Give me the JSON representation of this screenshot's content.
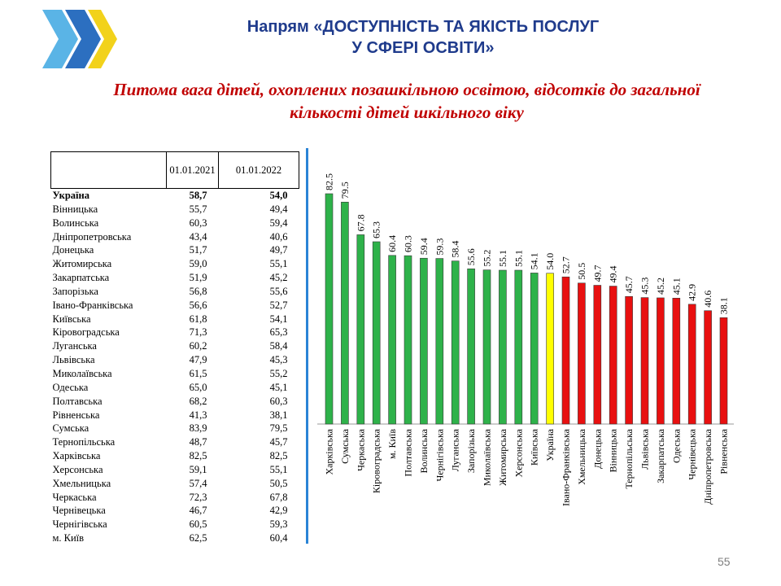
{
  "header": {
    "title_line1": "Напрям «ДОСТУПНІСТЬ ТА ЯКІСТЬ ПОСЛУГ",
    "title_line2": "У СФЕРІ ОСВІТИ»",
    "subtitle_line1": "Питома вага дітей, охоплених позашкільною освітою, відсотків до загальної",
    "subtitle_line2": "кількості дітей шкільного віку"
  },
  "colors": {
    "title": "#1f3b8c",
    "subtitle": "#c00000",
    "bar_above": "#2eb24a",
    "bar_ukraine": "#ffff00",
    "bar_below": "#e81010",
    "divider": "#2a84d6"
  },
  "table": {
    "columns": [
      "",
      "01.01.2021",
      "01.01.2022"
    ],
    "rows": [
      {
        "name": "Україна",
        "v2021": "58,7",
        "v2022": "54,0",
        "bold": true
      },
      {
        "name": "Вінницька",
        "v2021": "55,7",
        "v2022": "49,4"
      },
      {
        "name": "Волинська",
        "v2021": "60,3",
        "v2022": "59,4"
      },
      {
        "name": "Дніпропетровська",
        "v2021": "43,4",
        "v2022": "40,6"
      },
      {
        "name": "Донецька",
        "v2021": "51,7",
        "v2022": "49,7"
      },
      {
        "name": "Житомирська",
        "v2021": "59,0",
        "v2022": "55,1"
      },
      {
        "name": "Закарпатська",
        "v2021": "51,9",
        "v2022": "45,2"
      },
      {
        "name": "Запорізька",
        "v2021": "56,8",
        "v2022": "55,6"
      },
      {
        "name": "Івано-Франківська",
        "v2021": "56,6",
        "v2022": "52,7"
      },
      {
        "name": "Київська",
        "v2021": "61,8",
        "v2022": "54,1"
      },
      {
        "name": "Кіровоградська",
        "v2021": "71,3",
        "v2022": "65,3"
      },
      {
        "name": "Луганська",
        "v2021": "60,2",
        "v2022": "58,4"
      },
      {
        "name": "Львівська",
        "v2021": "47,9",
        "v2022": "45,3"
      },
      {
        "name": "Миколаївська",
        "v2021": "61,5",
        "v2022": "55,2"
      },
      {
        "name": "Одеська",
        "v2021": "65,0",
        "v2022": "45,1"
      },
      {
        "name": "Полтавська",
        "v2021": "68,2",
        "v2022": "60,3"
      },
      {
        "name": "Рівненська",
        "v2021": "41,3",
        "v2022": "38,1"
      },
      {
        "name": "Сумська",
        "v2021": "83,9",
        "v2022": "79,5"
      },
      {
        "name": "Тернопільська",
        "v2021": "48,7",
        "v2022": "45,7"
      },
      {
        "name": "Харківська",
        "v2021": "82,5",
        "v2022": "82,5"
      },
      {
        "name": "Херсонська",
        "v2021": "59,1",
        "v2022": "55,1"
      },
      {
        "name": "Хмельницька",
        "v2021": "57,4",
        "v2022": "50,5"
      },
      {
        "name": "Черкаська",
        "v2021": "72,3",
        "v2022": "67,8"
      },
      {
        "name": "Чернівецька",
        "v2021": "46,7",
        "v2022": "42,9"
      },
      {
        "name": "Чернігівська",
        "v2021": "60,5",
        "v2022": "59,3"
      },
      {
        "name": "м. Київ",
        "v2021": "62,5",
        "v2022": "60,4"
      }
    ]
  },
  "chart_data": {
    "type": "bar",
    "title": "",
    "xlabel": "",
    "ylabel": "",
    "ylim": [
      0,
      90
    ],
    "grid": false,
    "legend": "none",
    "categories": [
      "Харківська",
      "Сумська",
      "Черкаська",
      "Кіровоградська",
      "м. Київ",
      "Полтавська",
      "Волинська",
      "Чернігівська",
      "Луганська",
      "Запорізька",
      "Миколаївська",
      "Житомирська",
      "Херсонська",
      "Київська",
      "Україна",
      "Івано-Франківська",
      "Хмельницька",
      "Донецька",
      "Вінницька",
      "Тернопільська",
      "Львівська",
      "Закарпатська",
      "Одеська",
      "Чернівецька",
      "Дніпропетровська",
      "Рівненська"
    ],
    "values": [
      82.5,
      79.5,
      67.8,
      65.3,
      60.4,
      60.3,
      59.4,
      59.3,
      58.4,
      55.6,
      55.2,
      55.1,
      55.1,
      54.1,
      54.0,
      52.7,
      50.5,
      49.7,
      49.4,
      45.7,
      45.3,
      45.2,
      45.1,
      42.9,
      40.6,
      38.1
    ],
    "labels": [
      "82.5",
      "79.5",
      "67.8",
      "65.3",
      "60.4",
      "60.3",
      "59.4",
      "59.3",
      "58.4",
      "55.6",
      "55.2",
      "55.1",
      "55.1",
      "54.1",
      "54.0",
      "52.7",
      "50.5",
      "49.7",
      "49.4",
      "45.7",
      "45.3",
      "45.2",
      "45.1",
      "42.9",
      "40.6",
      "38.1"
    ],
    "reference_category": "Україна"
  },
  "footer": {
    "page_number": "55"
  }
}
